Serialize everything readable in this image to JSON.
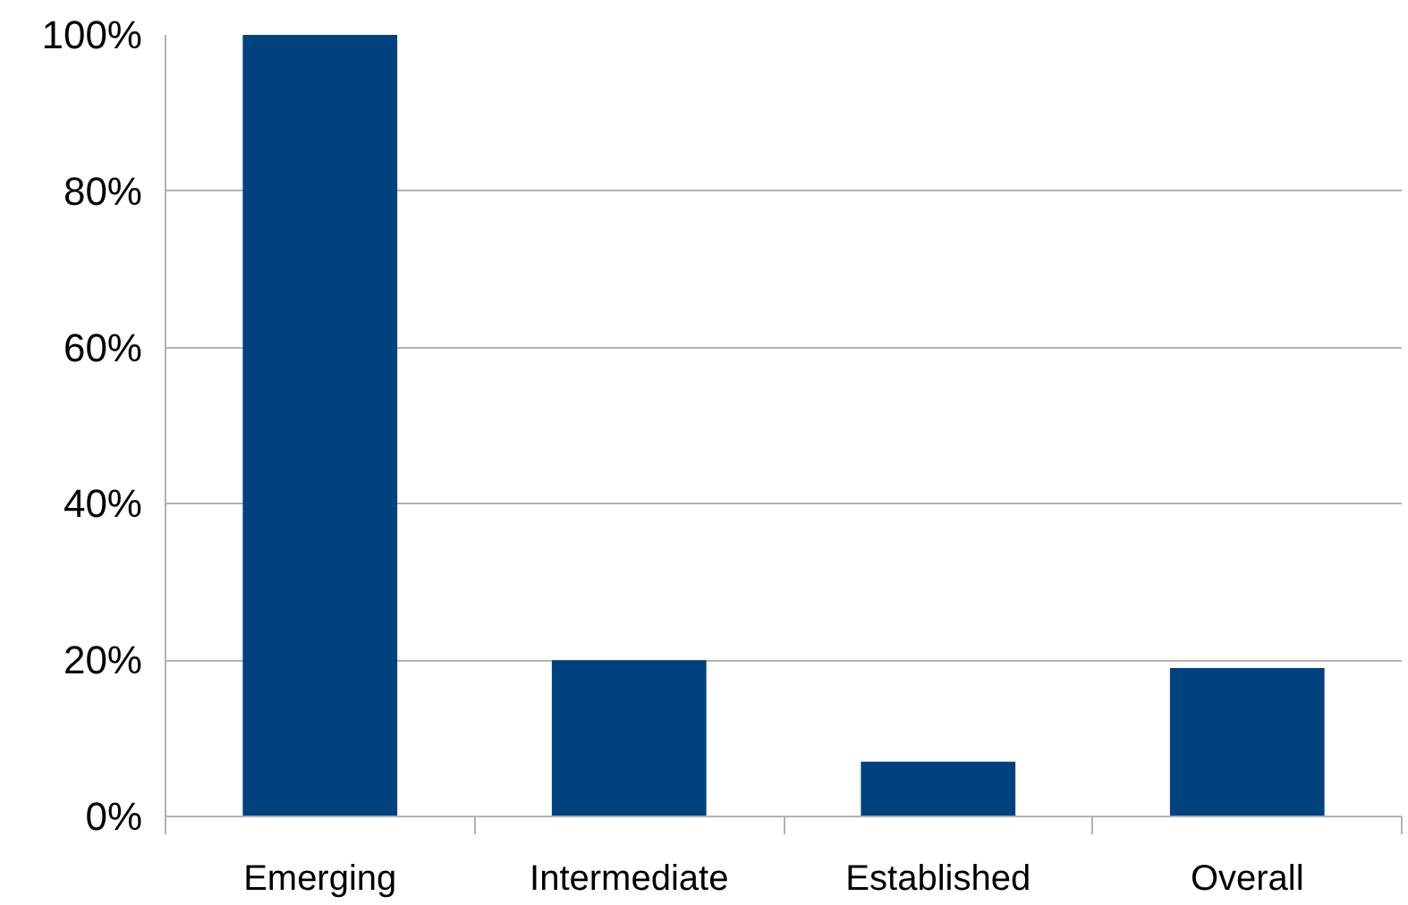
{
  "chart_data": {
    "type": "bar",
    "categories": [
      "Emerging",
      "Intermediate",
      "Established",
      "Overall"
    ],
    "values": [
      100,
      20,
      7,
      19
    ],
    "color": "#00427f",
    "ylim": [
      0,
      100
    ],
    "yticks": [
      {
        "value": 0,
        "label": "0%"
      },
      {
        "value": 20,
        "label": "20%"
      },
      {
        "value": 40,
        "label": "40%"
      },
      {
        "value": 60,
        "label": "60%"
      },
      {
        "value": 80,
        "label": "80%"
      },
      {
        "value": 100,
        "label": "100%"
      }
    ],
    "grid": "y"
  }
}
